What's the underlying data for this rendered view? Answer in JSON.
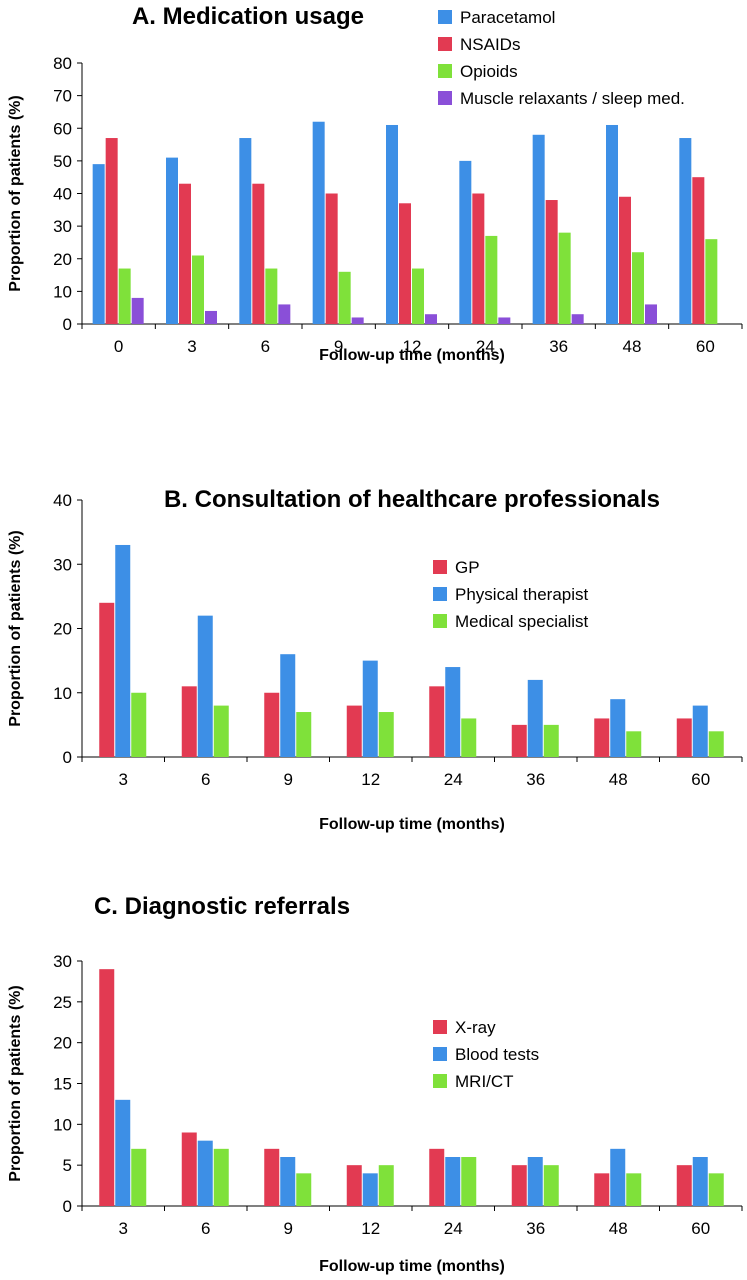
{
  "chart_data": [
    {
      "type": "bar",
      "title": "A. Medication usage",
      "xlabel": "Follow-up time (months)",
      "ylabel": "Proportion of patients (%)",
      "ylim": [
        0,
        80
      ],
      "yticks": [
        0,
        10,
        20,
        30,
        40,
        50,
        60,
        70,
        80
      ],
      "categories": [
        "0",
        "3",
        "6",
        "9",
        "12",
        "24",
        "36",
        "48",
        "60"
      ],
      "legend_position": "top-right",
      "series": [
        {
          "name": "Paracetamol",
          "color": "#3d8fe6",
          "values": [
            49,
            51,
            57,
            62,
            61,
            50,
            58,
            61,
            57
          ]
        },
        {
          "name": "NSAIDs",
          "color": "#e23a52",
          "values": [
            57,
            43,
            43,
            40,
            37,
            40,
            38,
            39,
            45
          ]
        },
        {
          "name": "Opioids",
          "color": "#7fe13a",
          "values": [
            17,
            21,
            17,
            16,
            17,
            27,
            28,
            22,
            26
          ]
        },
        {
          "name": "Muscle relaxants / sleep med.",
          "color": "#8a4fd8",
          "values": [
            8,
            4,
            6,
            2,
            3,
            2,
            3,
            6,
            0
          ]
        }
      ]
    },
    {
      "type": "bar",
      "title": "B. Consultation of healthcare professionals",
      "xlabel": "Follow-up time (months)",
      "ylabel": "Proportion of patients (%)",
      "ylim": [
        0,
        40
      ],
      "yticks": [
        0,
        10,
        20,
        30,
        40
      ],
      "categories": [
        "3",
        "6",
        "9",
        "12",
        "24",
        "36",
        "48",
        "60"
      ],
      "legend_position": "top-right",
      "series": [
        {
          "name": "GP",
          "color": "#e23a52",
          "values": [
            24,
            11,
            10,
            8,
            11,
            5,
            6,
            6
          ]
        },
        {
          "name": "Physical therapist",
          "color": "#3d8fe6",
          "values": [
            33,
            22,
            16,
            15,
            14,
            12,
            9,
            8
          ]
        },
        {
          "name": "Medical specialist",
          "color": "#7fe13a",
          "values": [
            10,
            8,
            7,
            7,
            6,
            5,
            4,
            4
          ]
        }
      ]
    },
    {
      "type": "bar",
      "title": "C. Diagnostic referrals",
      "xlabel": "Follow-up time (months)",
      "ylabel": "Proportion of patients (%)",
      "ylim": [
        0,
        30
      ],
      "yticks": [
        0,
        5,
        10,
        15,
        20,
        25,
        30
      ],
      "categories": [
        "3",
        "6",
        "9",
        "12",
        "24",
        "36",
        "48",
        "60"
      ],
      "legend_position": "top-right",
      "series": [
        {
          "name": "X-ray",
          "color": "#e23a52",
          "values": [
            29,
            9,
            7,
            5,
            7,
            5,
            4,
            5
          ]
        },
        {
          "name": "Blood tests",
          "color": "#3d8fe6",
          "values": [
            13,
            8,
            6,
            4,
            6,
            6,
            7,
            6
          ]
        },
        {
          "name": "MRI/CT",
          "color": "#7fe13a",
          "values": [
            7,
            7,
            4,
            5,
            6,
            5,
            4,
            4
          ]
        }
      ]
    }
  ]
}
